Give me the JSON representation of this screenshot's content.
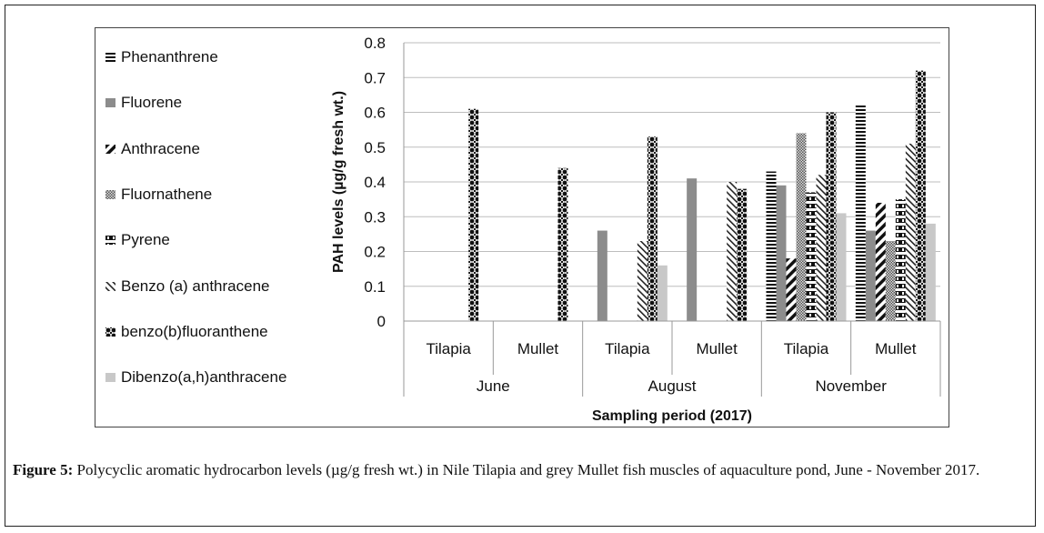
{
  "caption": {
    "label": "Figure 5:",
    "text": "Polycyclic aromatic hydrocarbon levels (µg/g fresh wt.) in Nile Tilapia and grey Mullet fish muscles of aquaculture pond, June - November 2017."
  },
  "chart_data": {
    "type": "bar",
    "title": "",
    "xlabel": "Sampling period (2017)",
    "ylabel": "PAH levels (µg/g fresh wt.)",
    "ylim": [
      0,
      0.8
    ],
    "yticks": [
      "0",
      "0.1",
      "0.2",
      "0.3",
      "0.4",
      "0.5",
      "0.6",
      "0.7",
      "0.8"
    ],
    "grid": true,
    "legend": "left",
    "groups": [
      {
        "label": "June",
        "categories": [
          "Tilapia",
          "Mullet"
        ]
      },
      {
        "label": "August",
        "categories": [
          "Tilapia",
          "Mullet"
        ]
      },
      {
        "label": "November",
        "categories": [
          "Tilapia",
          "Mullet"
        ]
      }
    ],
    "categories": [
      "Tilapia",
      "Mullet",
      "Tilapia",
      "Mullet",
      "Tilapia",
      "Mullet"
    ],
    "series": [
      {
        "name": "Phenanthrene",
        "pattern": "hlines",
        "values": [
          0,
          0,
          0,
          0,
          0.43,
          0.62
        ]
      },
      {
        "name": "Fluorene",
        "pattern": "solid-gray",
        "values": [
          0,
          0,
          0.26,
          0.41,
          0.39,
          0.26
        ]
      },
      {
        "name": "Anthracene",
        "pattern": "diag-bold",
        "values": [
          0,
          0,
          0,
          0,
          0.18,
          0.34
        ]
      },
      {
        "name": "Fluornathene",
        "pattern": "dense-dots",
        "values": [
          0,
          0,
          0,
          0,
          0.54,
          0.23
        ]
      },
      {
        "name": "Pyrene",
        "pattern": "dash-vertical",
        "values": [
          0,
          0,
          0,
          0,
          0.37,
          0.35
        ]
      },
      {
        "name": "Benzo (a) anthracene",
        "pattern": "diag-thin",
        "values": [
          0,
          0,
          0.23,
          0.4,
          0.42,
          0.51
        ]
      },
      {
        "name": "benzo(b)fluoranthene",
        "pattern": "checker",
        "values": [
          0.61,
          0.44,
          0.53,
          0.38,
          0.6,
          0.72
        ]
      },
      {
        "name": "Dibenzo(a,h)anthracene",
        "pattern": "light-gray",
        "values": [
          0,
          0,
          0.16,
          0,
          0.31,
          0.28
        ]
      }
    ]
  }
}
